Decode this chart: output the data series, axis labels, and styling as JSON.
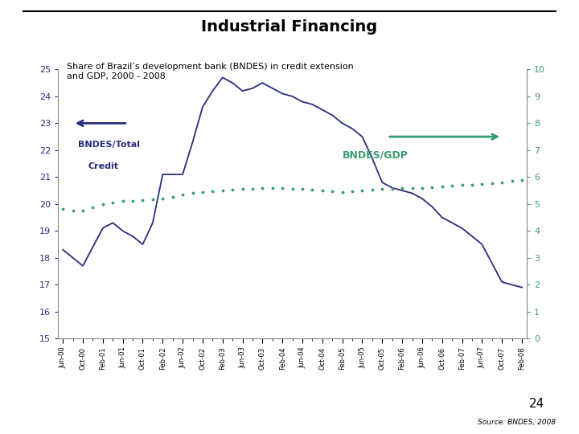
{
  "title": "Industrial Financing",
  "subtitle": "Share of Brazil’s development bank (BNDES) in credit extension\nand GDP, 2000 - 2008",
  "left_label_line1": "BNDES/Total",
  "left_label_line2": "Credit",
  "right_label": "BNDES/GDP",
  "left_ylim": [
    15,
    25
  ],
  "right_ylim": [
    0,
    10
  ],
  "left_yticks": [
    15,
    16,
    17,
    18,
    19,
    20,
    21,
    22,
    23,
    24,
    25
  ],
  "right_yticks": [
    0,
    1,
    2,
    3,
    4,
    5,
    6,
    7,
    8,
    9,
    10
  ],
  "left_color": "#2B2C7E",
  "right_color": "#3A9C74",
  "source_text": "Source: BNDES, 2008",
  "page_number": "24",
  "background_color": "#FFFFFF",
  "line1_color": "#2B2C7E",
  "line2_color": "#3A9C74",
  "xtick_labels": [
    "Jun-00",
    "",
    "Oct-00",
    "",
    "Feb-01",
    "",
    "Jun-01",
    "",
    "Oct-01",
    "",
    "Feb-02",
    "",
    "Jun-02",
    "",
    "Oct-02",
    "",
    "Feb-03",
    "",
    "Jun-03",
    "",
    "Oct-03",
    "",
    "Feb-04",
    "",
    "Jun-04",
    "",
    "Oct-04",
    "",
    "Feb-05",
    "",
    "Jun-05",
    "",
    "Oct-05",
    "",
    "Feb-06",
    "",
    "Jun-06",
    "",
    "Oct-06",
    "",
    "Feb-07",
    "",
    "Jun-07",
    "",
    "Oct-07",
    "",
    "Feb-08"
  ],
  "xtick_major_labels": [
    "Jun-00",
    "Oct-00",
    "Feb-01",
    "Jun-01",
    "Oct-01",
    "Feb-02",
    "Jun-02",
    "Oct-02",
    "Feb-03",
    "Jun-03",
    "Oct-03",
    "Feb-04",
    "Jun-04",
    "Oct-04",
    "Feb-05",
    "Jun-05",
    "Oct-05",
    "Feb-06",
    "Jun-06",
    "Oct-06",
    "Feb-07",
    "Jun-07",
    "Oct-07",
    "Feb-08"
  ],
  "line1_values": [
    18.3,
    18.0,
    17.7,
    18.4,
    19.1,
    19.3,
    19.0,
    18.8,
    18.5,
    19.3,
    21.1,
    21.1,
    21.1,
    22.3,
    23.6,
    24.2,
    24.7,
    24.5,
    24.2,
    24.3,
    24.5,
    24.3,
    24.1,
    24.0,
    23.8,
    23.7,
    23.5,
    23.3,
    23.0,
    22.8,
    22.5,
    21.7,
    20.8,
    20.6,
    20.5,
    20.4,
    20.2,
    19.9,
    19.5,
    19.3,
    19.1,
    18.8,
    18.5,
    17.8,
    17.1,
    17.0,
    16.9
  ],
  "line2_values": [
    4.8,
    4.77,
    4.75,
    4.87,
    5.0,
    5.05,
    5.1,
    5.12,
    5.15,
    5.17,
    5.2,
    5.27,
    5.35,
    5.4,
    5.45,
    5.47,
    5.5,
    5.52,
    5.55,
    5.57,
    5.6,
    5.6,
    5.6,
    5.57,
    5.55,
    5.52,
    5.5,
    5.47,
    5.45,
    5.47,
    5.5,
    5.52,
    5.55,
    5.57,
    5.6,
    5.6,
    5.6,
    5.62,
    5.65,
    5.67,
    5.7,
    5.72,
    5.75,
    5.77,
    5.8,
    5.85,
    5.9
  ]
}
